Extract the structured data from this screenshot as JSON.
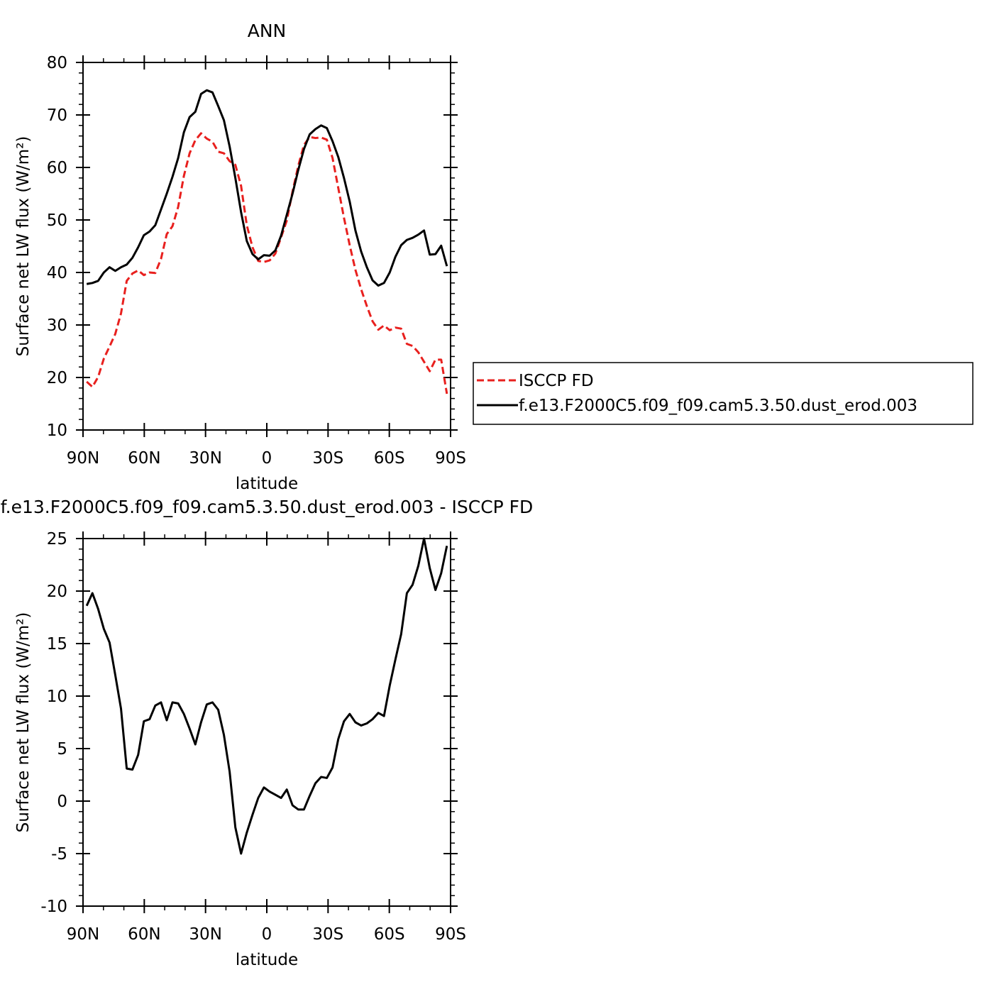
{
  "chart_data": [
    {
      "type": "line",
      "title": "ANN",
      "xlabel": "latitude",
      "ylabel": "Surface net LW flux (W/m²)",
      "x": [
        88.2,
        85.4,
        82.6,
        79.8,
        77.0,
        74.2,
        71.4,
        68.6,
        65.8,
        63.0,
        60.2,
        57.4,
        54.6,
        51.8,
        49.0,
        46.2,
        43.4,
        40.6,
        37.8,
        35.0,
        32.2,
        29.4,
        26.6,
        23.8,
        21.0,
        18.2,
        15.4,
        12.6,
        9.8,
        7.0,
        4.2,
        1.4,
        -1.4,
        -4.2,
        -7.0,
        -9.8,
        -12.6,
        -15.4,
        -18.2,
        -21.0,
        -23.8,
        -26.6,
        -29.4,
        -32.2,
        -35.0,
        -37.8,
        -40.6,
        -43.4,
        -46.2,
        -49.0,
        -51.8,
        -54.6,
        -57.4,
        -60.2,
        -63.0,
        -65.8,
        -68.6,
        -71.4,
        -74.2,
        -77.0,
        -79.8,
        -82.6,
        -85.4,
        -88.2
      ],
      "xlim": [
        90,
        -90
      ],
      "xticks": [
        {
          "value": 90,
          "label": "90N"
        },
        {
          "value": 60,
          "label": "60N"
        },
        {
          "value": 30,
          "label": "30N"
        },
        0,
        {
          "value": -30,
          "label": "30S"
        },
        {
          "value": -60,
          "label": "60S"
        },
        {
          "value": -90,
          "label": "90S"
        }
      ],
      "ylim": [
        10,
        80
      ],
      "yticks": [
        10,
        20,
        30,
        40,
        50,
        60,
        70,
        80
      ],
      "series": [
        {
          "name": "ISCCP FD",
          "color": "#e8201e",
          "linestyle": "dashed",
          "values": [
            19.2,
            18.2,
            20.1,
            23.6,
            25.9,
            28.3,
            32.2,
            38.4,
            39.8,
            40.4,
            39.5,
            40,
            39.9,
            42.6,
            47.3,
            48.8,
            52.5,
            58.4,
            62.7,
            65.2,
            66.5,
            65.5,
            64.9,
            63,
            62.7,
            61.2,
            60.5,
            56.5,
            49,
            44.8,
            42.2,
            42,
            42.3,
            43.6,
            46.7,
            49.9,
            55.4,
            60.3,
            64.3,
            65.8,
            65.6,
            65.7,
            65.3,
            61.8,
            56.1,
            50.4,
            45.2,
            40.5,
            36.8,
            33.6,
            30.7,
            29.1,
            29.9,
            29,
            29.5,
            29.3,
            26.4,
            26,
            24.8,
            23,
            21.2,
            23.4,
            23.4,
            16.9
          ]
        },
        {
          "name": "f.e13.F2000C5.f09_f09.cam5.3.50.dust_erod.003",
          "color": "#000000",
          "linestyle": "solid",
          "values": [
            37.8,
            38,
            38.4,
            40,
            41,
            40.3,
            41,
            41.5,
            42.8,
            44.8,
            47.1,
            47.8,
            49,
            52,
            55,
            58.2,
            61.8,
            66.7,
            69.6,
            70.6,
            74,
            74.7,
            74.3,
            71.7,
            69,
            64,
            58,
            51.5,
            46,
            43.5,
            42.5,
            43.3,
            43.2,
            44.2,
            47,
            51,
            55,
            59.5,
            63.5,
            66.3,
            67.3,
            68,
            67.5,
            65,
            62,
            58,
            53.5,
            48,
            44,
            41,
            38.5,
            37.5,
            38,
            40,
            43,
            45.2,
            46.2,
            46.6,
            47.2,
            48,
            43.4,
            43.5,
            45.1,
            41.2
          ]
        }
      ]
    },
    {
      "type": "line",
      "title": "f.e13.F2000C5.f09_f09.cam5.3.50.dust_erod.003 - ISCCP FD",
      "xlabel": "latitude",
      "ylabel": "Surface net LW flux (W/m²)",
      "x": [
        88.2,
        85.4,
        82.6,
        79.8,
        77.0,
        74.2,
        71.4,
        68.6,
        65.8,
        63.0,
        60.2,
        57.4,
        54.6,
        51.8,
        49.0,
        46.2,
        43.4,
        40.6,
        37.8,
        35.0,
        32.2,
        29.4,
        26.6,
        23.8,
        21.0,
        18.2,
        15.4,
        12.6,
        9.8,
        7.0,
        4.2,
        1.4,
        -1.4,
        -4.2,
        -7.0,
        -9.8,
        -12.6,
        -15.4,
        -18.2,
        -21.0,
        -23.8,
        -26.6,
        -29.4,
        -32.2,
        -35.0,
        -37.8,
        -40.6,
        -43.4,
        -46.2,
        -49.0,
        -51.8,
        -54.6,
        -57.4,
        -60.2,
        -63.0,
        -65.8,
        -68.6,
        -71.4,
        -74.2,
        -77.0,
        -79.8,
        -82.6,
        -85.4,
        -88.2
      ],
      "xlim": [
        90,
        -90
      ],
      "xticks": [
        {
          "value": 90,
          "label": "90N"
        },
        {
          "value": 60,
          "label": "60N"
        },
        {
          "value": 30,
          "label": "30N"
        },
        0,
        {
          "value": -30,
          "label": "30S"
        },
        {
          "value": -60,
          "label": "60S"
        },
        {
          "value": -90,
          "label": "90S"
        }
      ],
      "ylim": [
        -10,
        25
      ],
      "yticks": [
        -10,
        -5,
        0,
        5,
        10,
        15,
        20,
        25
      ],
      "series": [
        {
          "color": "#000000",
          "linestyle": "solid",
          "values": [
            18.6,
            19.8,
            18.3,
            16.4,
            15.1,
            12,
            8.8,
            3.1,
            3.0,
            4.4,
            7.6,
            7.8,
            9.1,
            9.4,
            7.7,
            9.4,
            9.3,
            8.3,
            6.9,
            5.4,
            7.5,
            9.2,
            9.4,
            8.7,
            6.3,
            2.8,
            -2.5,
            -5,
            -3,
            -1.3,
            0.3,
            1.3,
            0.9,
            0.6,
            0.3,
            1.1,
            -0.4,
            -0.8,
            -0.8,
            0.5,
            1.7,
            2.3,
            2.2,
            3.2,
            5.9,
            7.6,
            8.3,
            7.5,
            7.2,
            7.4,
            7.8,
            8.4,
            8.1,
            11,
            13.5,
            15.9,
            19.8,
            20.6,
            22.4,
            25,
            22.2,
            20.1,
            21.7,
            24.3
          ]
        }
      ]
    }
  ]
}
